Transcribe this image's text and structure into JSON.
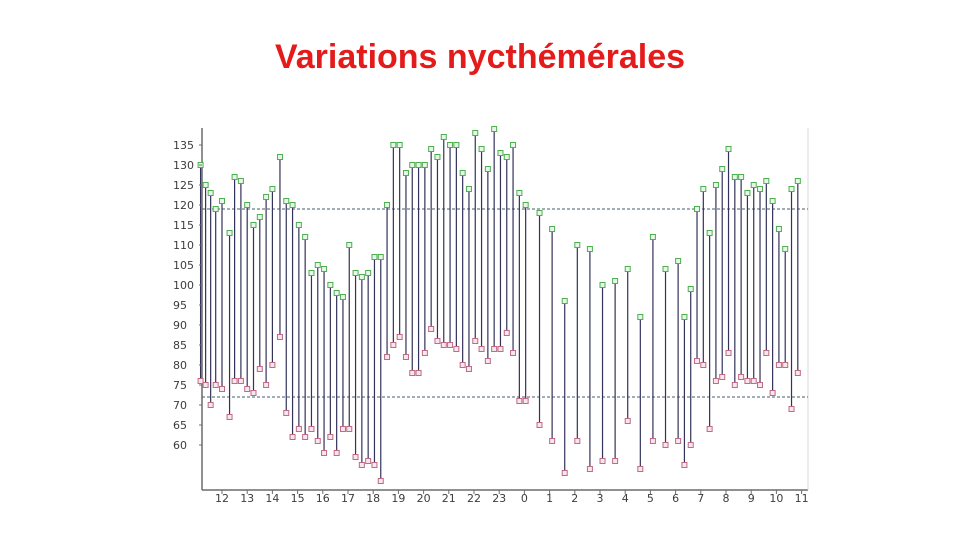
{
  "slide": {
    "title": "Variations nycthémérales",
    "title_color": "#e41b1b"
  },
  "chart_data": {
    "type": "line",
    "subtype": "high-low",
    "title": "Variations nycthémérales",
    "xlabel": "",
    "ylabel": "",
    "ylim": [
      50,
      140
    ],
    "y_ticks": [
      60,
      65,
      70,
      75,
      80,
      85,
      90,
      95,
      100,
      105,
      110,
      115,
      120,
      125,
      130,
      135
    ],
    "x_tick_labels": [
      "12",
      "13",
      "14",
      "15",
      "16",
      "17",
      "18",
      "19",
      "20",
      "21",
      "22",
      "23",
      "0",
      "1",
      "2",
      "3",
      "4",
      "5",
      "6",
      "7",
      "8",
      "9",
      "10",
      "11"
    ],
    "x_range_hours": [
      11.1,
      34.1
    ],
    "reference_lines": [
      119,
      72
    ],
    "grid": false,
    "colors": {
      "high_marker": "#4caf50",
      "low_marker": "#c06a86",
      "stem": "#33335a",
      "reference_line": "#4a5a6a"
    },
    "series": [
      {
        "name": "",
        "role": "high",
        "values": [
          {
            "x": 11.15,
            "y": 130
          },
          {
            "x": 11.35,
            "y": 125
          },
          {
            "x": 11.55,
            "y": 123
          },
          {
            "x": 11.75,
            "y": 119
          },
          {
            "x": 12.0,
            "y": 121
          },
          {
            "x": 12.3,
            "y": 113
          },
          {
            "x": 12.5,
            "y": 127
          },
          {
            "x": 12.75,
            "y": 126
          },
          {
            "x": 13.0,
            "y": 120
          },
          {
            "x": 13.25,
            "y": 115
          },
          {
            "x": 13.5,
            "y": 117
          },
          {
            "x": 13.75,
            "y": 122
          },
          {
            "x": 14.0,
            "y": 124
          },
          {
            "x": 14.3,
            "y": 132
          },
          {
            "x": 14.55,
            "y": 121
          },
          {
            "x": 14.8,
            "y": 120
          },
          {
            "x": 15.05,
            "y": 115
          },
          {
            "x": 15.3,
            "y": 112
          },
          {
            "x": 15.55,
            "y": 103
          },
          {
            "x": 15.8,
            "y": 105
          },
          {
            "x": 16.05,
            "y": 104
          },
          {
            "x": 16.3,
            "y": 100
          },
          {
            "x": 16.55,
            "y": 98
          },
          {
            "x": 16.8,
            "y": 97
          },
          {
            "x": 17.05,
            "y": 110
          },
          {
            "x": 17.3,
            "y": 103
          },
          {
            "x": 17.55,
            "y": 102
          },
          {
            "x": 17.8,
            "y": 103
          },
          {
            "x": 18.05,
            "y": 107
          },
          {
            "x": 18.3,
            "y": 107
          },
          {
            "x": 18.55,
            "y": 120
          },
          {
            "x": 18.8,
            "y": 135
          },
          {
            "x": 19.05,
            "y": 135
          },
          {
            "x": 19.3,
            "y": 128
          },
          {
            "x": 19.55,
            "y": 130
          },
          {
            "x": 19.8,
            "y": 130
          },
          {
            "x": 20.05,
            "y": 130
          },
          {
            "x": 20.3,
            "y": 134
          },
          {
            "x": 20.55,
            "y": 132
          },
          {
            "x": 20.8,
            "y": 137
          },
          {
            "x": 21.05,
            "y": 135
          },
          {
            "x": 21.3,
            "y": 135
          },
          {
            "x": 21.55,
            "y": 128
          },
          {
            "x": 21.8,
            "y": 124
          },
          {
            "x": 22.05,
            "y": 138
          },
          {
            "x": 22.3,
            "y": 134
          },
          {
            "x": 22.55,
            "y": 129
          },
          {
            "x": 22.8,
            "y": 139
          },
          {
            "x": 23.05,
            "y": 133
          },
          {
            "x": 23.3,
            "y": 132
          },
          {
            "x": 23.55,
            "y": 135
          },
          {
            "x": 23.8,
            "y": 123
          },
          {
            "x": 24.05,
            "y": 120
          },
          {
            "x": 24.6,
            "y": 118
          },
          {
            "x": 25.1,
            "y": 114
          },
          {
            "x": 25.6,
            "y": 96
          },
          {
            "x": 26.1,
            "y": 110
          },
          {
            "x": 26.6,
            "y": 109
          },
          {
            "x": 27.1,
            "y": 100
          },
          {
            "x": 27.6,
            "y": 101
          },
          {
            "x": 28.1,
            "y": 104
          },
          {
            "x": 28.6,
            "y": 92
          },
          {
            "x": 29.1,
            "y": 112
          },
          {
            "x": 29.6,
            "y": 104
          },
          {
            "x": 30.1,
            "y": 106
          },
          {
            "x": 30.35,
            "y": 92
          },
          {
            "x": 30.6,
            "y": 99
          },
          {
            "x": 30.85,
            "y": 119
          },
          {
            "x": 31.1,
            "y": 124
          },
          {
            "x": 31.35,
            "y": 113
          },
          {
            "x": 31.6,
            "y": 125
          },
          {
            "x": 31.85,
            "y": 129
          },
          {
            "x": 32.1,
            "y": 134
          },
          {
            "x": 32.35,
            "y": 127
          },
          {
            "x": 32.6,
            "y": 127
          },
          {
            "x": 32.85,
            "y": 123
          },
          {
            "x": 33.1,
            "y": 125
          },
          {
            "x": 33.35,
            "y": 124
          },
          {
            "x": 33.6,
            "y": 126
          },
          {
            "x": 33.85,
            "y": 121
          },
          {
            "x": 34.1,
            "y": 114
          },
          {
            "x": 34.35,
            "y": 109
          },
          {
            "x": 34.6,
            "y": 124
          },
          {
            "x": 34.85,
            "y": 126
          }
        ]
      },
      {
        "name": "",
        "role": "low",
        "values": [
          {
            "x": 11.15,
            "y": 76
          },
          {
            "x": 11.35,
            "y": 75
          },
          {
            "x": 11.55,
            "y": 70
          },
          {
            "x": 11.75,
            "y": 75
          },
          {
            "x": 12.0,
            "y": 74
          },
          {
            "x": 12.3,
            "y": 67
          },
          {
            "x": 12.5,
            "y": 76
          },
          {
            "x": 12.75,
            "y": 76
          },
          {
            "x": 13.0,
            "y": 74
          },
          {
            "x": 13.25,
            "y": 73
          },
          {
            "x": 13.5,
            "y": 79
          },
          {
            "x": 13.75,
            "y": 75
          },
          {
            "x": 14.0,
            "y": 80
          },
          {
            "x": 14.3,
            "y": 87
          },
          {
            "x": 14.55,
            "y": 68
          },
          {
            "x": 14.8,
            "y": 62
          },
          {
            "x": 15.05,
            "y": 64
          },
          {
            "x": 15.3,
            "y": 62
          },
          {
            "x": 15.55,
            "y": 64
          },
          {
            "x": 15.8,
            "y": 61
          },
          {
            "x": 16.05,
            "y": 58
          },
          {
            "x": 16.3,
            "y": 62
          },
          {
            "x": 16.55,
            "y": 58
          },
          {
            "x": 16.8,
            "y": 64
          },
          {
            "x": 17.05,
            "y": 64
          },
          {
            "x": 17.3,
            "y": 57
          },
          {
            "x": 17.55,
            "y": 55
          },
          {
            "x": 17.8,
            "y": 56
          },
          {
            "x": 18.05,
            "y": 55
          },
          {
            "x": 18.3,
            "y": 51
          },
          {
            "x": 18.55,
            "y": 82
          },
          {
            "x": 18.8,
            "y": 85
          },
          {
            "x": 19.05,
            "y": 87
          },
          {
            "x": 19.3,
            "y": 82
          },
          {
            "x": 19.55,
            "y": 78
          },
          {
            "x": 19.8,
            "y": 78
          },
          {
            "x": 20.05,
            "y": 83
          },
          {
            "x": 20.3,
            "y": 89
          },
          {
            "x": 20.55,
            "y": 86
          },
          {
            "x": 20.8,
            "y": 85
          },
          {
            "x": 21.05,
            "y": 85
          },
          {
            "x": 21.3,
            "y": 84
          },
          {
            "x": 21.55,
            "y": 80
          },
          {
            "x": 21.8,
            "y": 79
          },
          {
            "x": 22.05,
            "y": 86
          },
          {
            "x": 22.3,
            "y": 84
          },
          {
            "x": 22.55,
            "y": 81
          },
          {
            "x": 22.8,
            "y": 84
          },
          {
            "x": 23.05,
            "y": 84
          },
          {
            "x": 23.3,
            "y": 88
          },
          {
            "x": 23.55,
            "y": 83
          },
          {
            "x": 23.8,
            "y": 71
          },
          {
            "x": 24.05,
            "y": 71
          },
          {
            "x": 24.6,
            "y": 65
          },
          {
            "x": 25.1,
            "y": 61
          },
          {
            "x": 25.6,
            "y": 53
          },
          {
            "x": 26.1,
            "y": 61
          },
          {
            "x": 26.6,
            "y": 54
          },
          {
            "x": 27.1,
            "y": 56
          },
          {
            "x": 27.6,
            "y": 56
          },
          {
            "x": 28.1,
            "y": 66
          },
          {
            "x": 28.6,
            "y": 54
          },
          {
            "x": 29.1,
            "y": 61
          },
          {
            "x": 29.6,
            "y": 60
          },
          {
            "x": 30.1,
            "y": 61
          },
          {
            "x": 30.35,
            "y": 55
          },
          {
            "x": 30.6,
            "y": 60
          },
          {
            "x": 30.85,
            "y": 81
          },
          {
            "x": 31.1,
            "y": 80
          },
          {
            "x": 31.35,
            "y": 64
          },
          {
            "x": 31.6,
            "y": 76
          },
          {
            "x": 31.85,
            "y": 77
          },
          {
            "x": 32.1,
            "y": 83
          },
          {
            "x": 32.35,
            "y": 75
          },
          {
            "x": 32.6,
            "y": 77
          },
          {
            "x": 32.85,
            "y": 76
          },
          {
            "x": 33.1,
            "y": 76
          },
          {
            "x": 33.35,
            "y": 75
          },
          {
            "x": 33.6,
            "y": 83
          },
          {
            "x": 33.85,
            "y": 73
          },
          {
            "x": 34.1,
            "y": 80
          },
          {
            "x": 34.35,
            "y": 80
          },
          {
            "x": 34.6,
            "y": 69
          },
          {
            "x": 34.85,
            "y": 78
          }
        ]
      }
    ]
  }
}
